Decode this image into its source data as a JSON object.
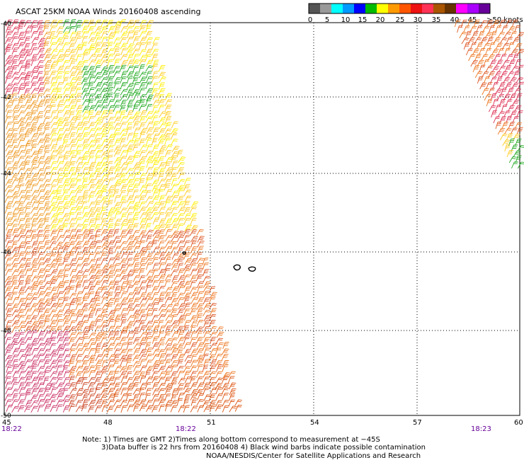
{
  "header": {
    "title": "ASCAT 25KM NOAA Winds 20160408 ascending"
  },
  "legend": {
    "colors": [
      "#555555",
      "#999999",
      "#00ffff",
      "#0099ff",
      "#0000ff",
      "#00bb00",
      "#ffff00",
      "#ff9900",
      "#ff5500",
      "#ee1111",
      "#ff3355",
      "#aa5500",
      "#663300",
      "#ff00ff",
      "#aa00ff",
      "#660099"
    ],
    "labels": [
      "0",
      "5",
      "10",
      "15",
      "20",
      "25",
      "30",
      "35",
      "40",
      "45",
      ">50 knots"
    ]
  },
  "axes": {
    "lat_labels": [
      "-40",
      "-42",
      "-44",
      "-46",
      "-48",
      "-50"
    ],
    "lon_labels": [
      "45",
      "48",
      "51",
      "54",
      "57",
      "60"
    ],
    "time_labels": [
      "18:22",
      "18:22",
      "18:23"
    ]
  },
  "footer": {
    "note_line1": "Note: 1) Times are GMT 2)Times along bottom correspond to measurement at −45S",
    "note_line2": "3)Data buffer is 22 hrs from 20160408 4) Black wind barbs indicate possible contamination",
    "credit": "NOAA/NESDIS/Center for Satellite Applications and Research"
  }
}
